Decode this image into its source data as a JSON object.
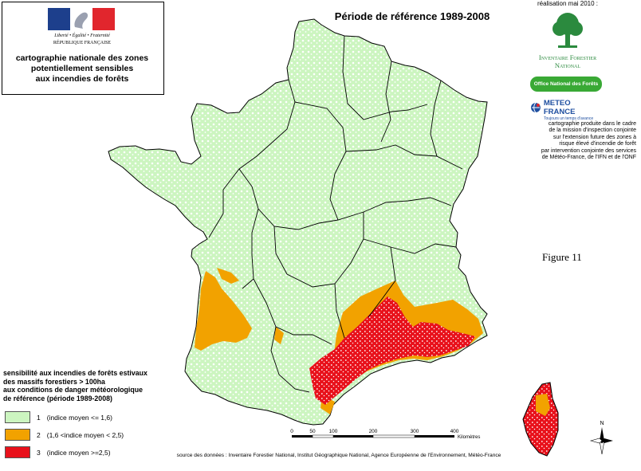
{
  "header": {
    "motto": "Liberté • Égalité • Fraternité",
    "republic": "RÉPUBLIQUE FRANÇAISE",
    "title_lines": [
      "cartographie nationale des zones",
      "potentiellement sensibles",
      "aux incendies de forêts"
    ]
  },
  "map_title": "Période de référence 1989-2008",
  "realisation": "réalisation mai 2010 :",
  "logos": {
    "ifn_line1": "Inventaire Forestier",
    "ifn_line2": "National",
    "onf": "Office National des Forêts",
    "meteo": "METEO FRANCE",
    "meteo_tagline": "Toujours un temps d'avance"
  },
  "credit_lines": [
    "cartographie produite dans le cadre",
    "de la mission d'inspection conjointe",
    "sur l'extension future des zones à",
    "risque élevé d'incendie de forêt",
    "par intervention conjointe des services",
    "de Météo-France, de l'IFN et de l'ONF"
  ],
  "figure_label": "Figure  11",
  "legend": {
    "title_lines": [
      "sensibilité aux incendies de forêts estivaux",
      "des massifs forestiers > 100ha",
      "aux conditions de danger météorologique",
      "de référence (période 1989-2008)"
    ],
    "classes": [
      {
        "id": "1",
        "label": "(indice moyen <= 1,6)",
        "color": "#ccf5c0"
      },
      {
        "id": "2",
        "label": "(1,6 <indice moyen < 2,5)",
        "color": "#f2a200"
      },
      {
        "id": "3",
        "label": "(indice moyen >=2,5)",
        "color": "#e8111b"
      }
    ]
  },
  "scale": {
    "ticks": [
      "0",
      "50",
      "100",
      "200",
      "300",
      "400"
    ],
    "unit": "Kilomètres"
  },
  "north_label": "N",
  "source": "source des données : Inventaire Forestier National, Institut Géographique National,  Agence Européenne de l'Environnement, Météo-France",
  "colors": {
    "low": "#ccf5c0",
    "medium": "#f2a200",
    "high": "#e8111b",
    "boundary": "#000000",
    "flag_blue": "#1d3f8c",
    "flag_red": "#e1262d",
    "ifn_green": "#2b8a3e",
    "onf_green": "#39a935",
    "meteo_blue": "#1f4fa0"
  }
}
